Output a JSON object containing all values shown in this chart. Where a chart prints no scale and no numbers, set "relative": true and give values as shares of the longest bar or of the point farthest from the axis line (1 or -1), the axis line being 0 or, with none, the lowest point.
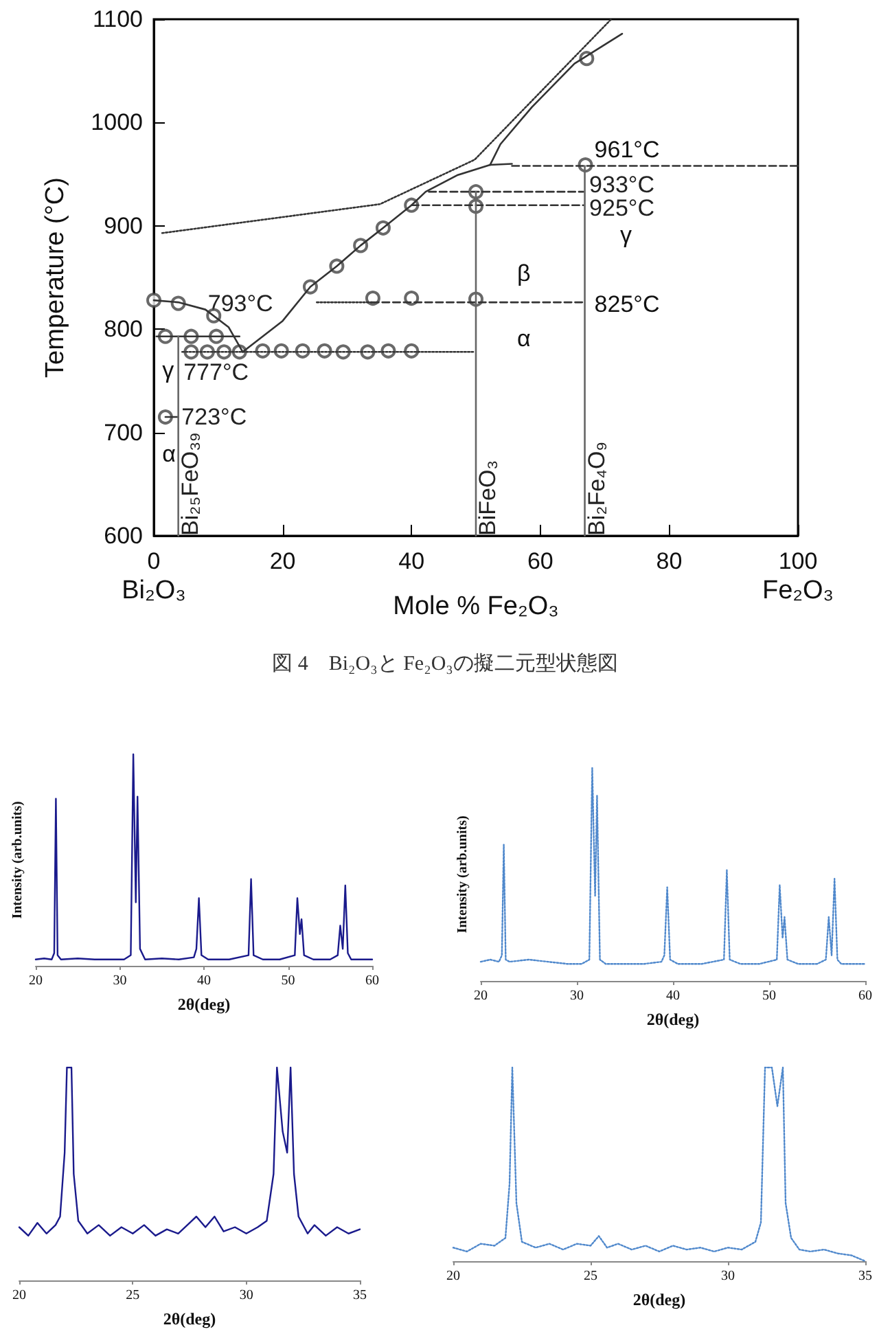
{
  "chart_data": [
    {
      "type": "line",
      "title": "図 4　Bi₂O₃と Fe₂O₃の擬二元型状態図",
      "xlabel": "Mole % Fe₂O₃",
      "ylabel": "Temperature (°C)",
      "xlim": [
        0,
        100
      ],
      "ylim": [
        600,
        1100
      ],
      "xticks": [
        0,
        20,
        40,
        60,
        80,
        100
      ],
      "yticks": [
        600,
        700,
        800,
        900,
        1000,
        1100
      ],
      "grid": false,
      "series": [
        {
          "color": "#333333",
          "line_style": "solid",
          "marker": "none",
          "x": [
            0,
            3.8,
            8,
            11.6,
            13.8
          ],
          "values": [
            828,
            826,
            819,
            802,
            778
          ]
        },
        {
          "color": "#333333",
          "line_style": "solid",
          "marker": "none",
          "x": [
            13.8,
            20,
            24.3,
            28.4,
            32.1,
            35.6,
            40,
            42.2,
            47.1,
            52.2,
            55.6
          ],
          "values": [
            778,
            808,
            841,
            861,
            881,
            898,
            920,
            933,
            949,
            959,
            960
          ]
        },
        {
          "color": "#333333",
          "line_style": "solid",
          "marker": "none",
          "x": [
            52.2,
            53.8,
            58.7,
            65.3,
            72.7
          ],
          "values": [
            959,
            979,
            1015,
            1057,
            1086
          ]
        },
        {
          "color": "#333333",
          "line_style": "dotted",
          "marker": "none",
          "x": [
            1.3,
            35.1,
            49.8,
            71
          ],
          "values": [
            893,
            921,
            964,
            1100
          ]
        },
        {
          "color": "#333333",
          "line_style": "solid",
          "marker": "none",
          "x": [
            0.4,
            13.3
          ],
          "values": [
            793,
            793
          ]
        },
        {
          "color": "#333333",
          "line_style": "dotted",
          "marker": "none",
          "x": [
            4.4,
            49.8
          ],
          "values": [
            778,
            778
          ]
        },
        {
          "color": "#333333",
          "line_style": "dashed",
          "marker": "none",
          "x": [
            55.6,
            100
          ],
          "values": [
            958,
            958
          ]
        },
        {
          "color": "#333333",
          "line_style": "dashed",
          "marker": "none",
          "x": [
            42.7,
            66.7
          ],
          "values": [
            933,
            933
          ]
        },
        {
          "color": "#333333",
          "line_style": "dashed",
          "marker": "none",
          "x": [
            40,
            66.7
          ],
          "values": [
            920,
            920
          ]
        },
        {
          "color": "#333333",
          "line_style": "dotted",
          "marker": "none",
          "x": [
            25.3,
            33.8
          ],
          "values": [
            826,
            826
          ]
        },
        {
          "color": "#333333",
          "line_style": "dashed",
          "marker": "none",
          "x": [
            33.8,
            66.7
          ],
          "values": [
            826,
            826
          ]
        },
        {
          "color": "#333333",
          "line_style": "solid",
          "marker": "none",
          "x": [
            1.8,
            3.8
          ],
          "values": [
            715,
            715
          ]
        },
        {
          "name": "Bi₂₅FeO₃₉",
          "color": "#666666",
          "line_style": "solid",
          "marker": "none",
          "x": [
            3.8,
            3.8
          ],
          "values": [
            600,
            793
          ]
        },
        {
          "name": "BiFeO₃",
          "color": "#666666",
          "line_style": "solid",
          "marker": "none",
          "x": [
            50,
            50
          ],
          "values": [
            600,
            933
          ]
        },
        {
          "name": "Bi₂Fe₄O₉",
          "color": "#666666",
          "line_style": "solid",
          "marker": "none",
          "x": [
            66.9,
            66.9
          ],
          "values": [
            600,
            958
          ]
        },
        {
          "type": "scatter",
          "color": "#444444",
          "marker": "circle",
          "x": [
            0,
            3.8,
            9.3,
            1.8,
            5.8,
            9.7,
            5.8,
            8.3,
            10.9,
            13.3,
            16.9,
            19.8,
            23.1,
            26.5,
            29.4,
            33.2,
            36.4,
            40,
            24.3,
            28.4,
            32.1,
            35.6,
            40,
            50,
            50,
            34,
            40,
            50,
            67,
            67.2,
            1.8
          ],
          "values": [
            828,
            825,
            813,
            793,
            793,
            793,
            778,
            778,
            778,
            778,
            779,
            779,
            779,
            779,
            778,
            778,
            779,
            779,
            841,
            861,
            881,
            898,
            920,
            933,
            919,
            830,
            830,
            829,
            959,
            1062,
            715
          ]
        }
      ],
      "annotations": [
        "Bi₂O₃",
        "Fe₂O₃",
        {
          "text": "793°C",
          "x": 8.4,
          "y": 825
        },
        {
          "text": "777°C",
          "x": 4.6,
          "y": 758
        },
        {
          "text": "723°C",
          "x": 4.3,
          "y": 715
        },
        "γ",
        "α",
        "961°C",
        {
          "text": "933°C",
          "x": 67.6,
          "y": 940
        },
        {
          "text": "925°C",
          "x": 67.6,
          "y": 917
        },
        "γ",
        "β",
        "α",
        "825°C"
      ]
    },
    {
      "type": "line",
      "relative": true,
      "xlabel": "2θ(deg)",
      "ylabel": "Intensity (arb.units)",
      "xlim": [
        20,
        60
      ],
      "xticks": [
        20,
        30,
        40,
        50,
        60
      ],
      "grid": false,
      "series": [
        {
          "color": "#1a1a8c",
          "line_style": "solid",
          "marker": "none",
          "x": [
            20,
            21,
            21.9,
            22.2,
            22.4,
            22.6,
            23,
            25,
            27,
            29,
            30.5,
            31.3,
            31.6,
            31.9,
            32.1,
            32.4,
            33,
            35,
            37,
            38.8,
            39.1,
            39.4,
            39.7,
            40.5,
            43,
            45.3,
            45.6,
            45.9,
            47,
            49,
            50.8,
            51.1,
            51.4,
            51.6,
            51.9,
            53,
            55,
            55.9,
            56.2,
            56.5,
            56.8,
            57.1,
            57.5,
            59,
            60
          ],
          "values": [
            0.03,
            0.035,
            0.03,
            0.06,
            0.79,
            0.05,
            0.03,
            0.035,
            0.03,
            0.03,
            0.03,
            0.05,
            1,
            0.3,
            0.8,
            0.08,
            0.03,
            0.035,
            0.03,
            0.04,
            0.08,
            0.32,
            0.05,
            0.03,
            0.03,
            0.05,
            0.41,
            0.05,
            0.03,
            0.03,
            0.05,
            0.32,
            0.15,
            0.22,
            0.05,
            0.03,
            0.03,
            0.05,
            0.19,
            0.08,
            0.38,
            0.06,
            0.03,
            0.03,
            0.03
          ]
        }
      ]
    },
    {
      "type": "line",
      "relative": true,
      "xlabel": "2θ(deg)",
      "ylabel": "Intensity (arb.units)",
      "xlim": [
        20,
        60
      ],
      "xticks": [
        20,
        30,
        40,
        50,
        60
      ],
      "grid": false,
      "series": [
        {
          "color": "#4f88cc",
          "line_style": "dotted",
          "marker": "none",
          "x": [
            20,
            21,
            21.9,
            22.2,
            22.4,
            22.6,
            23,
            25,
            27,
            29,
            30.5,
            31.3,
            31.6,
            31.9,
            32.1,
            32.4,
            33,
            35,
            37,
            38.8,
            39.1,
            39.4,
            39.7,
            40.5,
            43,
            45.3,
            45.6,
            45.9,
            47,
            49,
            50.8,
            51.1,
            51.4,
            51.6,
            51.9,
            53,
            55,
            55.9,
            56.2,
            56.5,
            56.8,
            57.1,
            57.5,
            59,
            60
          ],
          "values": [
            0.09,
            0.1,
            0.09,
            0.12,
            0.64,
            0.1,
            0.09,
            0.1,
            0.09,
            0.08,
            0.08,
            0.1,
            1,
            0.4,
            0.87,
            0.1,
            0.08,
            0.08,
            0.08,
            0.09,
            0.12,
            0.44,
            0.1,
            0.08,
            0.08,
            0.1,
            0.52,
            0.1,
            0.08,
            0.08,
            0.1,
            0.45,
            0.2,
            0.3,
            0.1,
            0.08,
            0.08,
            0.1,
            0.3,
            0.12,
            0.48,
            0.1,
            0.08,
            0.08,
            0.08
          ]
        }
      ]
    },
    {
      "type": "line",
      "relative": true,
      "xlabel": "2θ(deg)",
      "xlim": [
        20,
        35
      ],
      "xticks": [
        20,
        25,
        30,
        35
      ],
      "grid": false,
      "series": [
        {
          "color": "#1a1a8c",
          "line_style": "solid",
          "marker": "none",
          "x": [
            20,
            20.4,
            20.8,
            21.2,
            21.6,
            21.8,
            22,
            22.1,
            22.3,
            22.4,
            22.6,
            23,
            23.5,
            24,
            24.5,
            25,
            25.5,
            26,
            26.5,
            27,
            27.5,
            27.8,
            28.2,
            28.6,
            29,
            29.5,
            30,
            30.5,
            30.9,
            31.2,
            31.35,
            31.6,
            31.8,
            31.95,
            32.1,
            32.3,
            32.7,
            33,
            33.5,
            34,
            34.5,
            35
          ],
          "values": [
            0.25,
            0.21,
            0.27,
            0.22,
            0.26,
            0.3,
            0.6,
            1,
            1,
            0.5,
            0.28,
            0.22,
            0.26,
            0.21,
            0.25,
            0.22,
            0.26,
            0.21,
            0.24,
            0.22,
            0.27,
            0.3,
            0.25,
            0.3,
            0.23,
            0.25,
            0.22,
            0.25,
            0.28,
            0.5,
            1,
            0.7,
            0.6,
            1,
            0.5,
            0.3,
            0.22,
            0.26,
            0.21,
            0.25,
            0.22,
            0.24
          ]
        }
      ]
    },
    {
      "type": "line",
      "relative": true,
      "xlabel": "2θ(deg)",
      "xlim": [
        20,
        35
      ],
      "xticks": [
        20,
        25,
        30,
        35
      ],
      "grid": false,
      "series": [
        {
          "color": "#4f88cc",
          "line_style": "dotted",
          "marker": "none",
          "x": [
            20,
            20.5,
            21,
            21.5,
            21.9,
            22.05,
            22.15,
            22.3,
            22.5,
            23,
            23.5,
            24,
            24.5,
            25,
            25.3,
            25.6,
            26,
            26.5,
            27,
            27.5,
            28,
            28.5,
            29,
            29.5,
            30,
            30.5,
            31,
            31.2,
            31.35,
            31.6,
            31.8,
            32,
            32.1,
            32.3,
            32.6,
            33,
            33.5,
            34,
            34.5,
            35
          ],
          "values": [
            0.07,
            0.05,
            0.09,
            0.08,
            0.12,
            0.4,
            1,
            0.3,
            0.1,
            0.07,
            0.09,
            0.06,
            0.09,
            0.08,
            0.13,
            0.07,
            0.09,
            0.06,
            0.08,
            0.05,
            0.08,
            0.06,
            0.07,
            0.05,
            0.07,
            0.06,
            0.1,
            0.2,
            1,
            1,
            0.8,
            1,
            0.3,
            0.12,
            0.06,
            0.05,
            0.06,
            0.04,
            0.03,
            0
          ]
        }
      ]
    }
  ]
}
